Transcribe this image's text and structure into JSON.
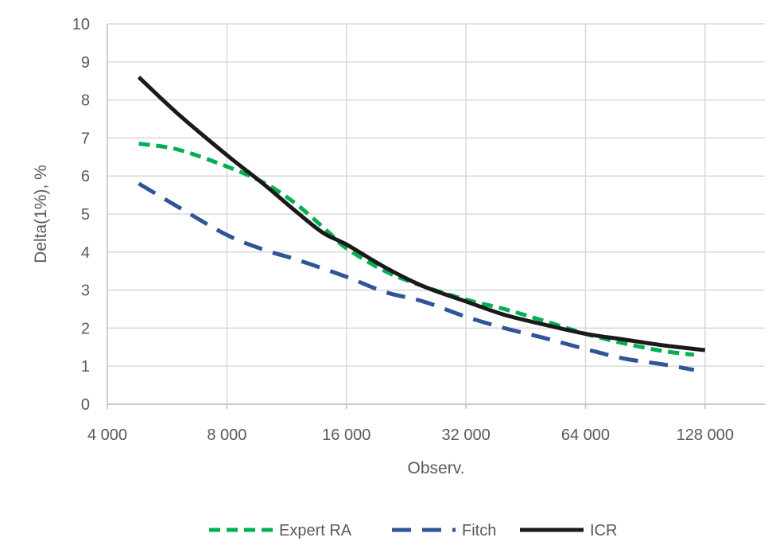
{
  "chart_data": {
    "type": "line",
    "title": "",
    "xlabel": "Observ.",
    "ylabel": "Delta(1%), %",
    "x_scale": "log2",
    "xlim": [
      4000,
      181000
    ],
    "ylim": [
      0,
      10
    ],
    "x_ticks": [
      4000,
      8000,
      16000,
      32000,
      64000,
      128000
    ],
    "x_tick_labels": [
      "4 000",
      "8 000",
      "16 000",
      "32 000",
      "64 000",
      "128 000"
    ],
    "y_ticks": [
      0,
      1,
      2,
      3,
      4,
      5,
      6,
      7,
      8,
      9,
      10
    ],
    "y_tick_labels": [
      "0",
      "1",
      "2",
      "3",
      "4",
      "5",
      "6",
      "7",
      "8",
      "9",
      "10"
    ],
    "grid": true,
    "legend_position": "bottom",
    "series": [
      {
        "name": "Expert RA",
        "color": "#00b050",
        "style": "dashed",
        "x": [
          4800,
          6000,
          8000,
          10000,
          12000,
          14500,
          16000,
          20000,
          25000,
          32000,
          40000,
          50000,
          64000,
          80000,
          100000,
          120000
        ],
        "values": [
          6.85,
          6.7,
          6.25,
          5.8,
          5.25,
          4.5,
          4.1,
          3.5,
          3.1,
          2.75,
          2.5,
          2.2,
          1.85,
          1.6,
          1.4,
          1.3
        ]
      },
      {
        "name": "Fitch",
        "color": "#2f5597",
        "style": "dashed",
        "x": [
          4800,
          6000,
          8000,
          10000,
          12000,
          16000,
          20000,
          25000,
          32000,
          40000,
          50000,
          64000,
          80000,
          100000,
          120000
        ],
        "values": [
          5.8,
          5.2,
          4.45,
          4.05,
          3.8,
          3.35,
          2.95,
          2.7,
          2.3,
          2.0,
          1.75,
          1.45,
          1.2,
          1.05,
          0.9
        ]
      },
      {
        "name": "ICR",
        "color": "#1a1a1a",
        "style": "solid",
        "x": [
          4800,
          6000,
          8000,
          10000,
          12000,
          14000,
          16000,
          20000,
          25000,
          32000,
          40000,
          50000,
          64000,
          80000,
          100000,
          128000
        ],
        "values": [
          8.6,
          7.65,
          6.55,
          5.75,
          5.05,
          4.5,
          4.2,
          3.6,
          3.1,
          2.7,
          2.35,
          2.1,
          1.85,
          1.7,
          1.55,
          1.42
        ]
      }
    ]
  }
}
